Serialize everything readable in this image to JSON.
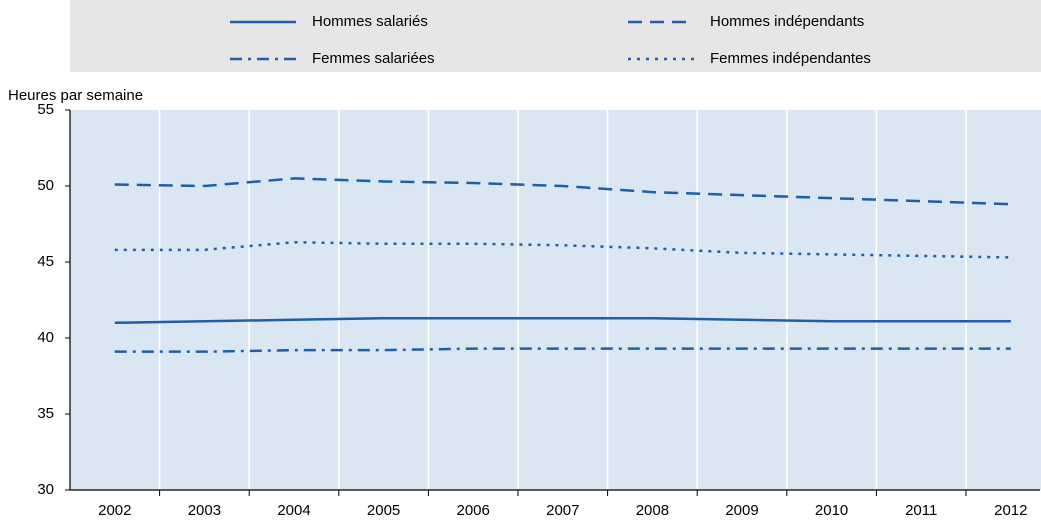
{
  "chart_data": {
    "type": "line",
    "y_label": "Heures par semaine",
    "categories": [
      "2002",
      "2003",
      "2004",
      "2005",
      "2006",
      "2007",
      "2008",
      "2009",
      "2010",
      "2011",
      "2012"
    ],
    "series": [
      {
        "name": "Hommes salariés",
        "color": "#1f5fa6",
        "style": "solid",
        "values": [
          41.0,
          41.1,
          41.2,
          41.3,
          41.3,
          41.3,
          41.3,
          41.2,
          41.1,
          41.1,
          41.1
        ]
      },
      {
        "name": "Hommes indépendants",
        "color": "#1f5fa6",
        "style": "dashed",
        "values": [
          50.1,
          50.0,
          50.5,
          50.3,
          50.2,
          50.0,
          49.6,
          49.4,
          49.2,
          49.0,
          48.8
        ]
      },
      {
        "name": "Femmes salariées",
        "color": "#1f5fa6",
        "style": "dashdot",
        "values": [
          39.1,
          39.1,
          39.2,
          39.2,
          39.3,
          39.3,
          39.3,
          39.3,
          39.3,
          39.3,
          39.3
        ]
      },
      {
        "name": "Femmes indépendantes",
        "color": "#1f5fa6",
        "style": "dotted",
        "values": [
          45.8,
          45.8,
          46.3,
          46.2,
          46.2,
          46.1,
          45.9,
          45.6,
          45.5,
          45.4,
          45.3
        ]
      }
    ],
    "ylim": [
      30,
      55
    ],
    "yticks": [
      30,
      35,
      40,
      45,
      50,
      55
    ]
  }
}
